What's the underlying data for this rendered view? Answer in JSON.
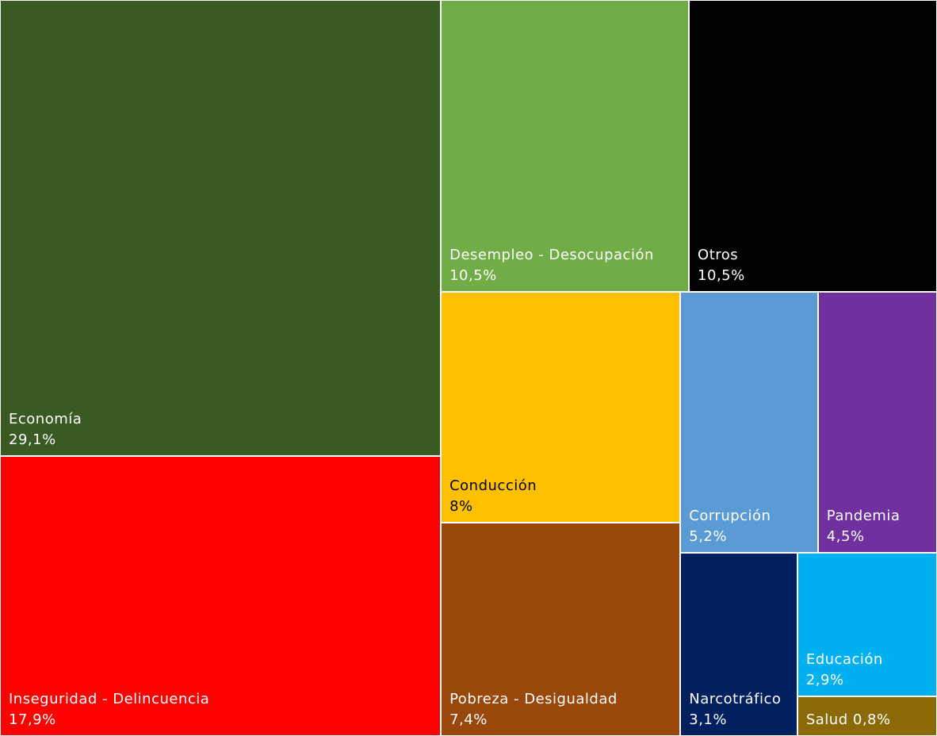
{
  "chart_data": {
    "type": "treemap",
    "categories": [
      "Economía",
      "Inseguridad - Delincuencia",
      "Desempleo - Desocupación",
      "Otros",
      "Conducción",
      "Pobreza - Desigualdad",
      "Corrupción",
      "Pandemia",
      "Narcotráfico",
      "Educación",
      "Salud"
    ],
    "values": [
      29.1,
      17.9,
      10.5,
      10.5,
      8,
      7.4,
      5.2,
      4.5,
      3.1,
      2.9,
      0.8
    ],
    "value_labels": [
      "29,1%",
      "17,9%",
      "10,5%",
      "10,5%",
      "8%",
      "7,4%",
      "5,2%",
      "4,5%",
      "3,1%",
      "2,9%",
      "0,8%"
    ],
    "colors": [
      "#3a5a24",
      "#ff0000",
      "#70ad47",
      "#000000",
      "#ffc000",
      "#9a470c",
      "#5b9bd5",
      "#7030a0",
      "#002060",
      "#00b0f0",
      "#8b6a06"
    ]
  }
}
